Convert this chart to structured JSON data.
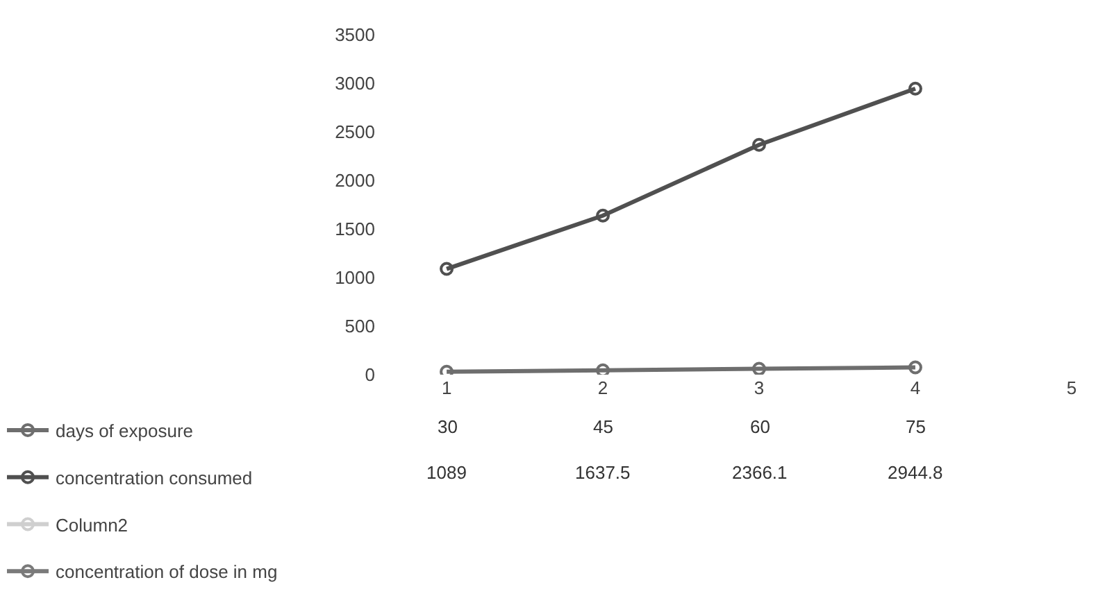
{
  "chart_data": {
    "type": "line",
    "categories": [
      "1",
      "2",
      "3",
      "4",
      "5"
    ],
    "series": [
      {
        "name": "days of exposure",
        "color": "#6e6e6e",
        "values": [
          30,
          45,
          60,
          75,
          null
        ]
      },
      {
        "name": "concentration consumed",
        "color": "#505050",
        "values": [
          1089,
          1637.5,
          2366.1,
          2944.8,
          null
        ]
      },
      {
        "name": "Column2",
        "color": "#cfcfcf",
        "values": [
          null,
          null,
          null,
          null,
          null
        ]
      },
      {
        "name": "concentration of dose in mg",
        "color": "#7a7a7a",
        "values": [
          null,
          null,
          null,
          null,
          null
        ]
      }
    ],
    "ylim": [
      0,
      3500
    ],
    "yticks": [
      0,
      500,
      1000,
      1500,
      2000,
      2500,
      3000,
      3500
    ],
    "legend": "bottom left",
    "marker": "circle",
    "line_style": "solid",
    "data_labels": true
  }
}
